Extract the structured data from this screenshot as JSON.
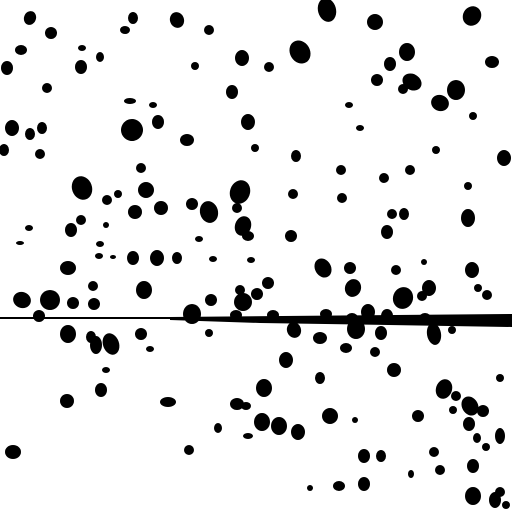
{
  "image": {
    "kind": "binary-speckle-pattern",
    "background_color": "#ffffff",
    "foreground_color": "#000000",
    "has_horizontal_line": true
  }
}
